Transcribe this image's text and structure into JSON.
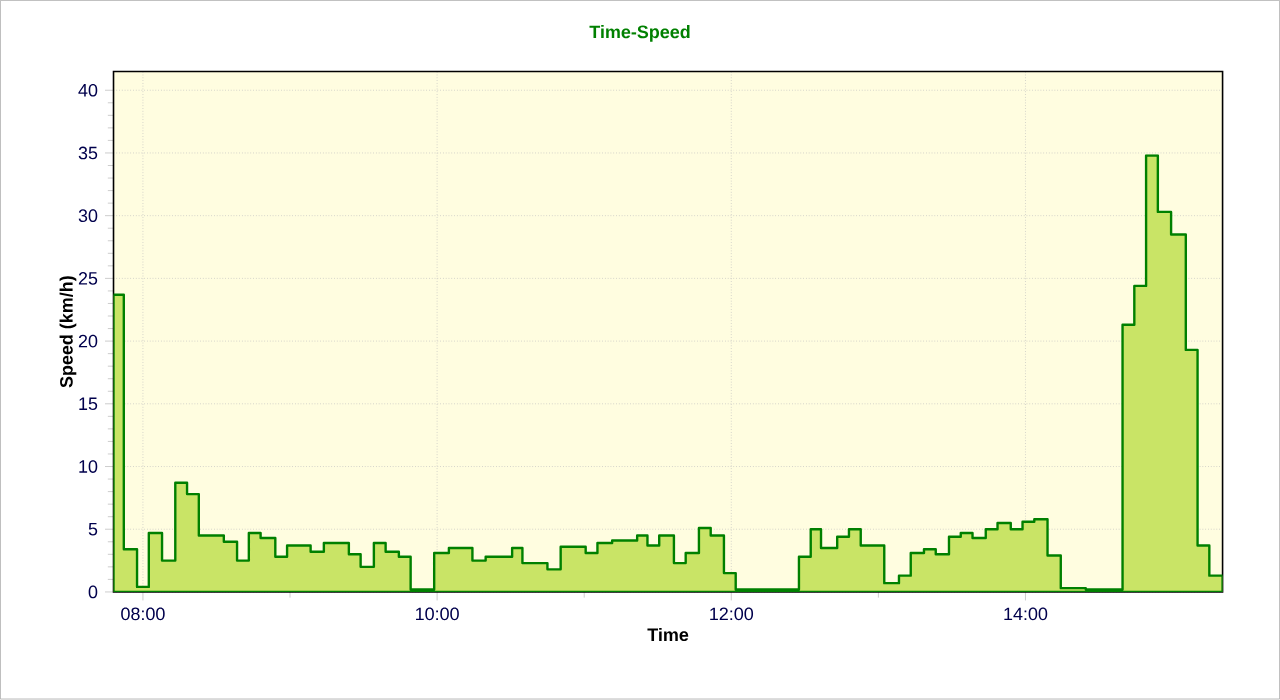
{
  "chart_data": {
    "type": "area",
    "title": "Time-Speed",
    "xlabel": "Time",
    "ylabel": "Speed (km/h)",
    "x": [
      7.8,
      7.87,
      7.96,
      8.04,
      8.13,
      8.22,
      8.3,
      8.38,
      8.55,
      8.64,
      8.72,
      8.8,
      8.9,
      8.98,
      9.14,
      9.23,
      9.4,
      9.48,
      9.57,
      9.65,
      9.74,
      9.82,
      9.98,
      10.08,
      10.24,
      10.33,
      10.51,
      10.58,
      10.75,
      10.84,
      11.01,
      11.09,
      11.19,
      11.36,
      11.43,
      11.51,
      11.61,
      11.69,
      11.78,
      11.86,
      11.95,
      12.03,
      12.46,
      12.54,
      12.61,
      12.72,
      12.8,
      12.88,
      13.04,
      13.14,
      13.22,
      13.31,
      13.39,
      13.48,
      13.56,
      13.64,
      13.73,
      13.81,
      13.9,
      13.98,
      14.06,
      14.15,
      14.24,
      14.41,
      14.66,
      14.74,
      14.82,
      14.9,
      14.99,
      15.09,
      15.17,
      15.25,
      15.34
    ],
    "series": [
      {
        "color": "#008000",
        "values": [
          23.7,
          3.4,
          0.4,
          4.7,
          2.5,
          8.7,
          7.8,
          4.5,
          4.0,
          2.5,
          4.7,
          4.3,
          2.8,
          3.7,
          3.2,
          3.9,
          3.0,
          2.0,
          3.9,
          3.2,
          2.8,
          0.2,
          3.1,
          3.5,
          2.5,
          2.8,
          3.5,
          2.3,
          1.8,
          3.6,
          3.1,
          3.9,
          4.1,
          4.5,
          3.7,
          4.5,
          2.3,
          3.1,
          5.1,
          4.5,
          1.5,
          0.2,
          2.8,
          5.0,
          3.5,
          4.4,
          5.0,
          3.7,
          0.7,
          1.3,
          3.1,
          3.4,
          3.0,
          4.4,
          4.7,
          4.3,
          5.0,
          5.5,
          5.0,
          5.6,
          5.8,
          2.9,
          0.3,
          0.2,
          21.3,
          24.4,
          34.8,
          30.3,
          28.5,
          19.3,
          3.7,
          1.3,
          1.3
        ]
      }
    ],
    "xlim": [
      7.8,
      15.34
    ],
    "ylim": [
      0,
      41.5
    ],
    "xticks": [
      {
        "value": 8,
        "label": "08:00"
      },
      {
        "value": 10,
        "label": "10:00"
      },
      {
        "value": 12,
        "label": "12:00"
      },
      {
        "value": 14,
        "label": "14:00"
      }
    ],
    "yticks": [
      0,
      5,
      10,
      15,
      20,
      25,
      30,
      35,
      40
    ],
    "grid": true,
    "line_style": "solid",
    "marker": "none"
  }
}
